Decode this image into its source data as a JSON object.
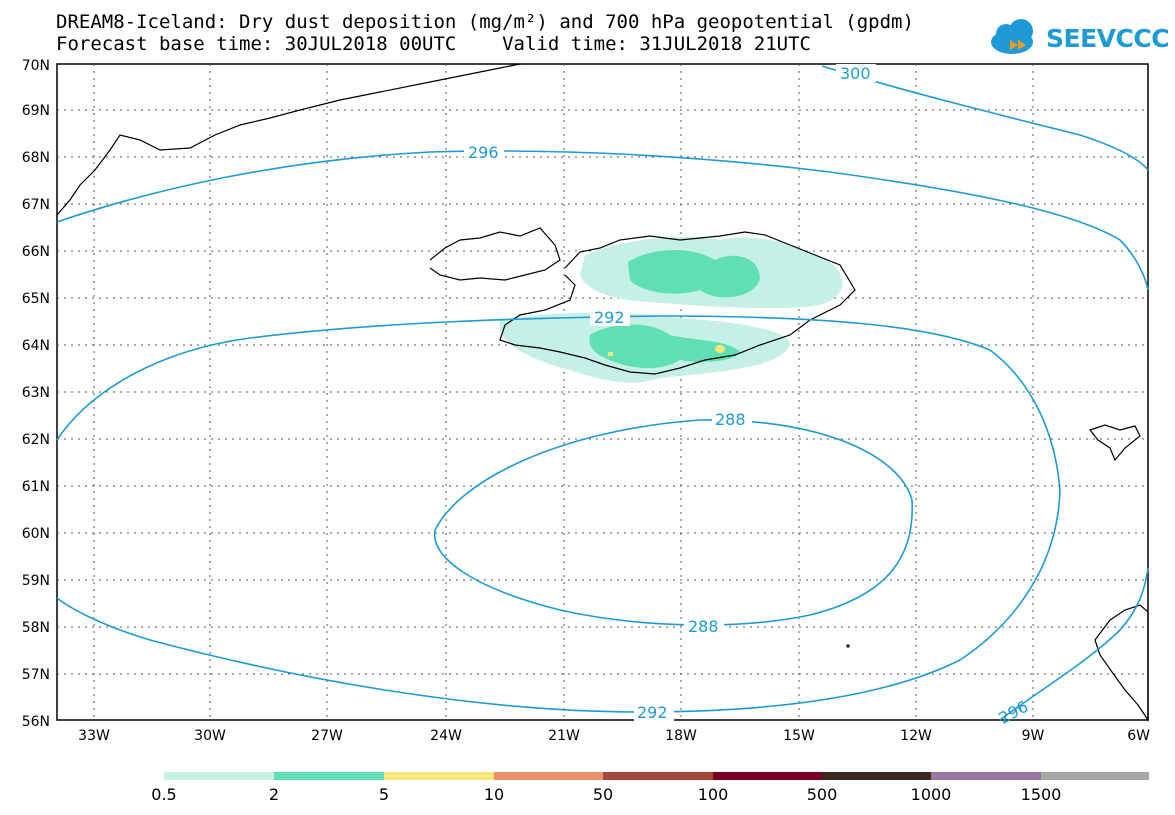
{
  "title": {
    "line1": "DREAM8-Iceland: Dry dust deposition (mg/m²) and 700 hPa geopotential (gpdm)",
    "line2": "Forecast base time: 30JUL2018 00UTC    Valid time: 31JUL2018 21UTC"
  },
  "logo": {
    "text": "SEEVCCC",
    "icon": "cloud-icon"
  },
  "map": {
    "lon_range": [
      -34.3,
      -6.0
    ],
    "lat_range": [
      56,
      70
    ],
    "lat_labels": [
      "56N",
      "57N",
      "58N",
      "59N",
      "60N",
      "61N",
      "62N",
      "63N",
      "64N",
      "65N",
      "66N",
      "67N",
      "68N",
      "69N",
      "70N"
    ],
    "lon_labels": [
      "33W",
      "30W",
      "27W",
      "24W",
      "21W",
      "18W",
      "15W",
      "12W",
      "9W",
      "6W"
    ],
    "contour_labels": [
      "300",
      "296",
      "292",
      "288",
      "288",
      "292",
      "296"
    ],
    "contour_color": "#1f9ad6"
  },
  "legend": {
    "labels": [
      "0.5",
      "2",
      "5",
      "10",
      "50",
      "100",
      "500",
      "1000",
      "1500"
    ],
    "colors": [
      "#c4f0e6",
      "#5ee0b2",
      "#f6e77a",
      "#eb8d6b",
      "#a6473c",
      "#7a0026",
      "#3c2a1a",
      "#9b78a4",
      "#a8a8a8"
    ]
  }
}
